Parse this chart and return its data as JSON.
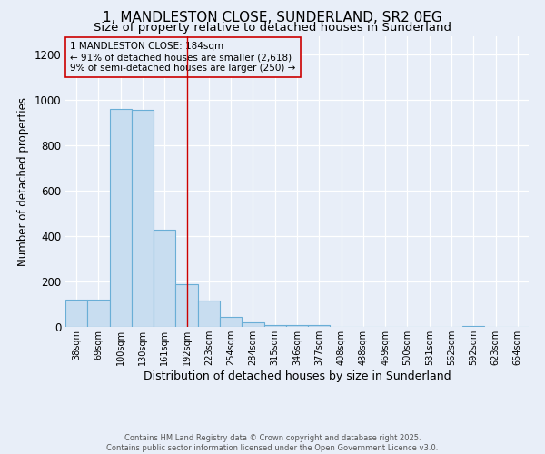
{
  "title": "1, MANDLESTON CLOSE, SUNDERLAND, SR2 0EG",
  "subtitle": "Size of property relative to detached houses in Sunderland",
  "xlabel": "Distribution of detached houses by size in Sunderland",
  "ylabel": "Number of detached properties",
  "categories": [
    "38sqm",
    "69sqm",
    "100sqm",
    "130sqm",
    "161sqm",
    "192sqm",
    "223sqm",
    "254sqm",
    "284sqm",
    "315sqm",
    "346sqm",
    "377sqm",
    "408sqm",
    "438sqm",
    "469sqm",
    "500sqm",
    "531sqm",
    "562sqm",
    "592sqm",
    "623sqm",
    "654sqm"
  ],
  "values": [
    120,
    120,
    960,
    955,
    430,
    190,
    115,
    45,
    20,
    10,
    10,
    10,
    0,
    0,
    0,
    0,
    0,
    0,
    5,
    0,
    0
  ],
  "bar_color_face": "#c8ddf0",
  "bar_color_edge": "#6aaed6",
  "vline_x_index": 5,
  "vline_color": "#cc0000",
  "ylim": [
    0,
    1280
  ],
  "yticks": [
    0,
    200,
    400,
    600,
    800,
    1000,
    1200
  ],
  "annotation_text": "1 MANDLESTON CLOSE: 184sqm\n← 91% of detached houses are smaller (2,618)\n9% of semi-detached houses are larger (250) →",
  "annotation_box_color": "#cc0000",
  "footer_line1": "Contains HM Land Registry data © Crown copyright and database right 2025.",
  "footer_line2": "Contains public sector information licensed under the Open Government Licence v3.0.",
  "bg_color": "#e8eef8",
  "grid_color": "#d0d8e8",
  "title_fontsize": 11,
  "subtitle_fontsize": 9.5,
  "title_fontweight": "normal"
}
